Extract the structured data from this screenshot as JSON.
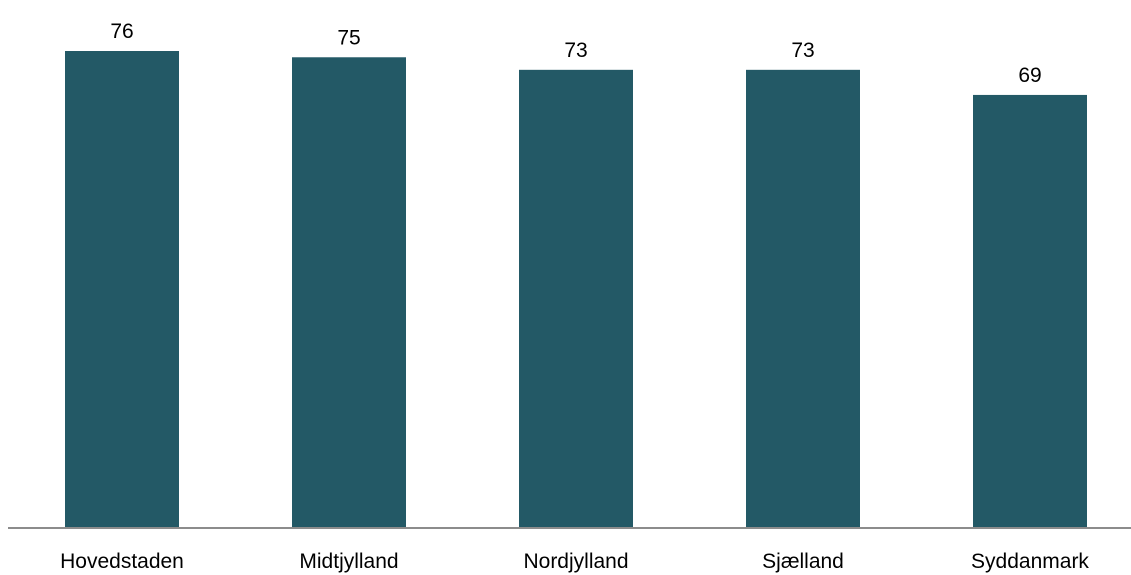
{
  "chart_data": {
    "type": "bar",
    "categories": [
      "Hovedstaden",
      "Midtjylland",
      "Nordjylland",
      "Sjælland",
      "Syddanmark"
    ],
    "values": [
      76,
      75,
      73,
      73,
      69
    ],
    "data_labels": [
      "76",
      "75",
      "73",
      "73",
      "69"
    ],
    "title": "",
    "xlabel": "",
    "ylabel": "",
    "ylim": [
      0,
      76
    ],
    "grid": false,
    "legend": "none",
    "bar_color": "#235966",
    "axis_color": "#8c8c8c"
  }
}
